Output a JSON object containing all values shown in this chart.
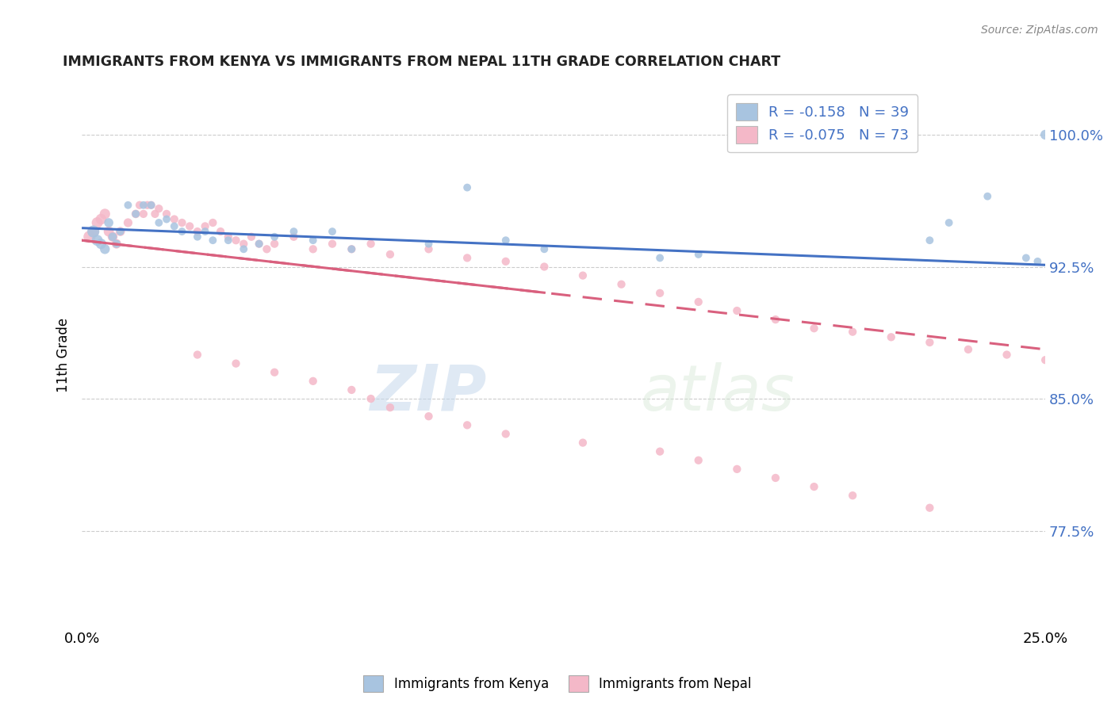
{
  "title": "IMMIGRANTS FROM KENYA VS IMMIGRANTS FROM NEPAL 11TH GRADE CORRELATION CHART",
  "source": "Source: ZipAtlas.com",
  "ylabel": "11th Grade",
  "xlim": [
    0.0,
    0.25
  ],
  "ylim": [
    0.72,
    1.03
  ],
  "yticks": [
    0.775,
    0.85,
    0.925,
    1.0
  ],
  "ytick_labels": [
    "77.5%",
    "85.0%",
    "92.5%",
    "100.0%"
  ],
  "xticks": [
    0.0,
    0.05,
    0.1,
    0.15,
    0.2,
    0.25
  ],
  "xtick_labels": [
    "0.0%",
    "",
    "",
    "",
    "",
    "25.0%"
  ],
  "kenya_R": -0.158,
  "kenya_N": 39,
  "nepal_R": -0.075,
  "nepal_N": 73,
  "kenya_color": "#a8c4e0",
  "nepal_color": "#f4b8c8",
  "kenya_line_color": "#4472c4",
  "nepal_line_color": "#d9607e",
  "legend_label_kenya": "Immigrants from Kenya",
  "legend_label_nepal": "Immigrants from Nepal",
  "watermark_zip": "ZIP",
  "watermark_atlas": "atlas",
  "kenya_x": [
    0.003,
    0.004,
    0.005,
    0.006,
    0.007,
    0.008,
    0.009,
    0.01,
    0.012,
    0.014,
    0.016,
    0.018,
    0.02,
    0.022,
    0.024,
    0.026,
    0.03,
    0.032,
    0.034,
    0.038,
    0.042,
    0.046,
    0.05,
    0.055,
    0.06,
    0.065,
    0.07,
    0.09,
    0.1,
    0.11,
    0.12,
    0.15,
    0.16,
    0.22,
    0.225,
    0.235,
    0.245,
    0.248,
    0.25
  ],
  "kenya_y": [
    0.945,
    0.94,
    0.938,
    0.935,
    0.95,
    0.942,
    0.938,
    0.945,
    0.96,
    0.955,
    0.96,
    0.96,
    0.95,
    0.952,
    0.948,
    0.945,
    0.942,
    0.945,
    0.94,
    0.94,
    0.935,
    0.938,
    0.942,
    0.945,
    0.94,
    0.945,
    0.935,
    0.938,
    0.97,
    0.94,
    0.935,
    0.93,
    0.932,
    0.94,
    0.95,
    0.965,
    0.93,
    0.928,
    1.0
  ],
  "kenya_sizes": [
    120,
    100,
    90,
    80,
    70,
    60,
    55,
    50,
    50,
    50,
    50,
    50,
    50,
    50,
    50,
    50,
    50,
    50,
    50,
    50,
    50,
    50,
    50,
    50,
    50,
    50,
    50,
    50,
    50,
    50,
    50,
    50,
    50,
    50,
    50,
    50,
    50,
    50,
    80
  ],
  "nepal_x": [
    0.002,
    0.003,
    0.004,
    0.005,
    0.006,
    0.007,
    0.008,
    0.009,
    0.01,
    0.012,
    0.014,
    0.015,
    0.016,
    0.017,
    0.018,
    0.019,
    0.02,
    0.022,
    0.024,
    0.026,
    0.028,
    0.03,
    0.032,
    0.034,
    0.036,
    0.038,
    0.04,
    0.042,
    0.044,
    0.046,
    0.048,
    0.05,
    0.055,
    0.06,
    0.065,
    0.07,
    0.075,
    0.08,
    0.09,
    0.1,
    0.11,
    0.12,
    0.13,
    0.14,
    0.15,
    0.16,
    0.17,
    0.18,
    0.19,
    0.2,
    0.21,
    0.22,
    0.23,
    0.24,
    0.25,
    0.03,
    0.04,
    0.05,
    0.06,
    0.07,
    0.075,
    0.08,
    0.09,
    0.1,
    0.11,
    0.13,
    0.15,
    0.16,
    0.17,
    0.18,
    0.19,
    0.2,
    0.22
  ],
  "nepal_y": [
    0.942,
    0.945,
    0.95,
    0.952,
    0.955,
    0.945,
    0.942,
    0.938,
    0.945,
    0.95,
    0.955,
    0.96,
    0.955,
    0.96,
    0.96,
    0.955,
    0.958,
    0.955,
    0.952,
    0.95,
    0.948,
    0.945,
    0.948,
    0.95,
    0.945,
    0.942,
    0.94,
    0.938,
    0.942,
    0.938,
    0.935,
    0.938,
    0.942,
    0.935,
    0.938,
    0.935,
    0.938,
    0.932,
    0.935,
    0.93,
    0.928,
    0.925,
    0.92,
    0.915,
    0.91,
    0.905,
    0.9,
    0.895,
    0.89,
    0.888,
    0.885,
    0.882,
    0.878,
    0.875,
    0.872,
    0.875,
    0.87,
    0.865,
    0.86,
    0.855,
    0.85,
    0.845,
    0.84,
    0.835,
    0.83,
    0.825,
    0.82,
    0.815,
    0.81,
    0.805,
    0.8,
    0.795,
    0.788
  ],
  "nepal_sizes": [
    120,
    110,
    100,
    95,
    90,
    85,
    80,
    75,
    70,
    65,
    60,
    55,
    55,
    55,
    55,
    55,
    55,
    55,
    55,
    55,
    55,
    55,
    55,
    55,
    55,
    55,
    55,
    55,
    55,
    55,
    55,
    55,
    55,
    55,
    55,
    55,
    55,
    55,
    55,
    55,
    55,
    55,
    55,
    55,
    55,
    55,
    55,
    55,
    55,
    55,
    55,
    55,
    55,
    55,
    55,
    55,
    55,
    55,
    55,
    55,
    55,
    55,
    55,
    55,
    55,
    55,
    55,
    55,
    55,
    55,
    55,
    55,
    55
  ]
}
